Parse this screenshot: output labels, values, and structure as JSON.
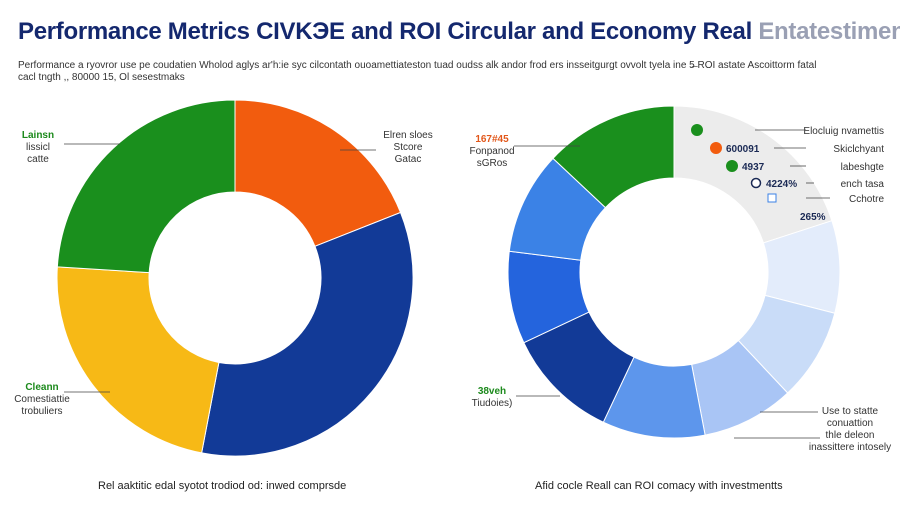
{
  "title": {
    "main": "Performance Metrics ",
    "mid": "CIVKЭE and ROI Circular and Economy Real ",
    "faded": "Entatestiments*"
  },
  "subtitle": "Performance a ryovror use pe coudatien Wholod aglys ar'h:ie syc cilcontath ouoamettiateston tuad oudss alk andor frod ers insseitgurgt ovvolt tyela ine 5̶ ROI astate Ascoittorm fatal cacl tngth ,, 80000 15, Ol sesestmaks",
  "colors": {
    "green": "#1a8f1d",
    "orange": "#f25c0e",
    "navy": "#123a97",
    "yellow": "#f7b916",
    "blue": "#3b82e6",
    "lightblue": "#c9dcf8",
    "paleblue": "#e3ecfb",
    "grey": "#ececec"
  },
  "chart_data": [
    {
      "type": "pie",
      "donut": true,
      "slices": [
        {
          "label": "Elren sloes / Stcore Gatac",
          "value": 19,
          "color": "#f25c0e"
        },
        {
          "label": "",
          "value": 34,
          "color": "#123a97"
        },
        {
          "label": "Cleann / Comestiattie trobuliers",
          "value": 23,
          "color": "#f7b916"
        },
        {
          "label": "Lainsn / lissicl catte",
          "value": 24,
          "color": "#1a8f1d"
        }
      ],
      "annotations": [
        {
          "lines": [
            "Lainsn",
            "lissicl",
            "catte"
          ],
          "style": "green"
        },
        {
          "lines": [
            "Elren sloes",
            "Stcore",
            "Gatac"
          ],
          "style": "plain"
        },
        {
          "lines": [
            "Cleann",
            "Comestiattie",
            "trobuliers"
          ],
          "style": "green"
        }
      ],
      "caption": "Rel aaktitic edal syotot trodiod od: inwed comprsde"
    },
    {
      "type": "pie",
      "donut": true,
      "slices": [
        {
          "value": 20,
          "color": "#ececec"
        },
        {
          "value": 9,
          "color": "#e3ecfb"
        },
        {
          "value": 9,
          "color": "#c9dcf8"
        },
        {
          "value": 9,
          "color": "#a9c5f5"
        },
        {
          "value": 10,
          "color": "#5d96ec"
        },
        {
          "value": 11,
          "color": "#123a97"
        },
        {
          "value": 9,
          "color": "#2464dd"
        },
        {
          "value": 10,
          "color": "#3b82e6"
        },
        {
          "value": 13,
          "color": "#1a8f1d"
        }
      ],
      "annotations_left": [
        {
          "lines": [
            "167#45",
            "Fonpanod",
            "sGRos"
          ],
          "style": "orange"
        },
        {
          "lines": [
            "38veh",
            "Tiudoies)"
          ],
          "style": "green"
        }
      ],
      "annotations_right": [
        {
          "value": "",
          "text": "Elocluig nvamettis"
        },
        {
          "value": "600091",
          "text": "Skiclchyant"
        },
        {
          "value": "4937",
          "text": "labeshgte"
        },
        {
          "value": "4224%",
          "text": "ench tasa"
        },
        {
          "value": "",
          "text": "Cchotre"
        },
        {
          "value": "265%",
          "text": ""
        }
      ],
      "annotations_bottom": [
        "Use to statte",
        "conuattion",
        "thle deleon",
        "inassittere intosely"
      ],
      "caption": "Afid cocle Reall can ROI comacy with investmentts"
    }
  ]
}
